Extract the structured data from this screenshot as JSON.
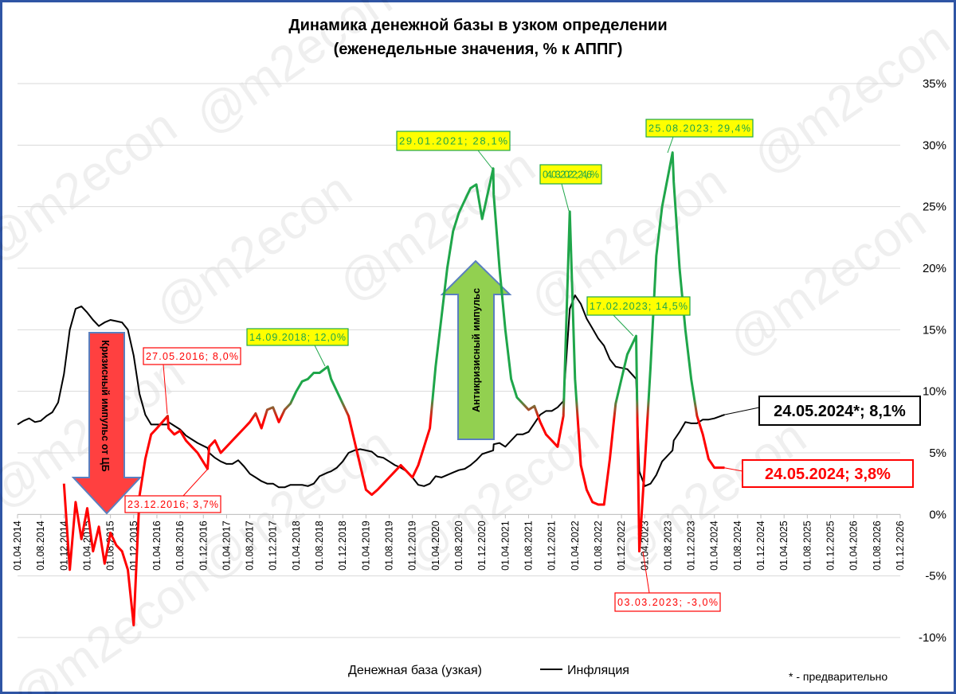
{
  "chart_data": {
    "type": "line",
    "title": "Динамика денежной базы в узком определении",
    "subtitle": "(еженедельные значения, % к АППГ)",
    "watermark": "@m2econ",
    "categories": [
      "01.04.2014",
      "01.08.2014",
      "01.12.2014",
      "01.04.2015",
      "01.08.2015",
      "01.12.2015",
      "01.04.2016",
      "01.08.2016",
      "01.12.2016",
      "01.04.2017",
      "01.08.2017",
      "01.12.2017",
      "01.04.2018",
      "01.08.2018",
      "01.12.2018",
      "01.04.2019",
      "01.08.2019",
      "01.12.2019",
      "01.04.2020",
      "01.08.2020",
      "01.12.2020",
      "01.04.2021",
      "01.08.2021",
      "01.12.2021",
      "01.04.2022",
      "01.08.2022",
      "01.12.2022",
      "01.04.2023",
      "01.08.2023",
      "01.12.2023",
      "01.04.2024",
      "01.08.2024",
      "01.12.2024",
      "01.04.2025",
      "01.08.2025",
      "01.12.2025",
      "01.04.2026",
      "01.08.2026",
      "01.12.2026"
    ],
    "x": [
      "01.04.2014",
      "01.05.2014",
      "01.06.2014",
      "01.07.2014",
      "01.08.2014",
      "01.09.2014",
      "01.10.2014",
      "01.11.2014",
      "01.12.2014",
      "01.01.2015",
      "01.02.2015",
      "01.03.2015",
      "01.04.2015",
      "01.05.2015",
      "01.06.2015",
      "01.07.2015",
      "01.08.2015",
      "01.09.2015",
      "01.10.2015",
      "01.11.2015",
      "01.12.2015",
      "01.01.2016",
      "01.02.2016",
      "01.03.2016",
      "01.04.2016",
      "27.05.2016",
      "01.06.2016",
      "01.07.2016",
      "01.08.2016",
      "01.09.2016",
      "01.10.2016",
      "01.11.2016",
      "23.12.2016",
      "01.01.2017",
      "01.02.2017",
      "01.03.2017",
      "01.04.2017",
      "01.05.2017",
      "01.06.2017",
      "01.07.2017",
      "01.08.2017",
      "01.09.2017",
      "01.10.2017",
      "01.11.2017",
      "01.12.2017",
      "01.01.2018",
      "01.02.2018",
      "01.03.2018",
      "01.04.2018",
      "01.05.2018",
      "01.06.2018",
      "01.07.2018",
      "01.08.2018",
      "14.09.2018",
      "01.10.2018",
      "01.11.2018",
      "01.12.2018",
      "01.01.2019",
      "01.02.2019",
      "01.03.2019",
      "01.04.2019",
      "01.05.2019",
      "01.06.2019",
      "01.07.2019",
      "01.08.2019",
      "01.09.2019",
      "01.10.2019",
      "01.11.2019",
      "01.12.2019",
      "01.01.2020",
      "01.02.2020",
      "01.03.2020",
      "01.04.2020",
      "01.05.2020",
      "01.06.2020",
      "01.07.2020",
      "01.08.2020",
      "01.09.2020",
      "01.10.2020",
      "01.11.2020",
      "01.12.2020",
      "29.01.2021",
      "01.02.2021",
      "01.03.2021",
      "01.04.2021",
      "01.05.2021",
      "01.06.2021",
      "01.07.2021",
      "01.08.2021",
      "01.09.2021",
      "01.10.2021",
      "01.11.2021",
      "01.12.2021",
      "01.01.2022",
      "01.02.2022",
      "04.03.2022",
      "01.04.2022",
      "01.05.2022",
      "01.06.2022",
      "01.07.2022",
      "01.08.2022",
      "01.09.2022",
      "01.10.2022",
      "01.11.2022",
      "01.12.2022",
      "01.01.2023",
      "17.02.2023",
      "03.03.2023",
      "01.04.2023",
      "01.05.2023",
      "01.06.2023",
      "01.07.2023",
      "25.08.2023",
      "01.09.2023",
      "01.10.2023",
      "01.11.2023",
      "01.12.2023",
      "01.01.2024",
      "01.02.2024",
      "01.03.2024",
      "01.04.2024",
      "24.05.2024"
    ],
    "series": [
      {
        "name": "Денежная база (узкая)",
        "color": "#ff0000",
        "color2": "#1fa64a",
        "values": [
          null,
          null,
          null,
          null,
          null,
          null,
          null,
          null,
          2.5,
          -4.5,
          1.0,
          -2.0,
          0.5,
          -3.0,
          -1.0,
          -4.0,
          -1.5,
          -2.5,
          -3.0,
          -4.5,
          -9.0,
          1.5,
          4.5,
          6.5,
          7.0,
          8.0,
          7.0,
          6.5,
          6.8,
          6.0,
          5.5,
          5.0,
          3.7,
          5.5,
          6.0,
          5.0,
          5.5,
          6.0,
          6.5,
          7.0,
          7.5,
          8.2,
          7.0,
          8.5,
          8.7,
          7.5,
          8.5,
          9.0,
          10.0,
          10.8,
          11.0,
          11.5,
          11.5,
          12.0,
          11.0,
          10.0,
          9.0,
          8.0,
          6.0,
          4.0,
          2.0,
          1.6,
          2.0,
          2.5,
          3.0,
          3.5,
          4.0,
          3.5,
          3.0,
          4.0,
          5.5,
          7.0,
          12.0,
          16.0,
          20.0,
          23.0,
          24.5,
          25.5,
          26.5,
          26.8,
          24.0,
          28.1,
          26.0,
          20.0,
          15.0,
          11.0,
          9.5,
          9.0,
          8.5,
          8.8,
          7.5,
          6.5,
          6.0,
          5.5,
          8.0,
          24.6,
          11.0,
          4.0,
          2.0,
          1.0,
          0.8,
          0.8,
          4.5,
          9.0,
          11.0,
          13.0,
          14.5,
          -3.0,
          4.0,
          12.0,
          21.0,
          25.0,
          29.4,
          27.0,
          20.0,
          15.0,
          11.0,
          8.0,
          6.5,
          4.5,
          3.8,
          3.8
        ]
      },
      {
        "name": "Инфляция",
        "color": "#000000",
        "values": [
          7.3,
          7.6,
          7.8,
          7.5,
          7.6,
          8.0,
          8.3,
          9.1,
          11.4,
          15.0,
          16.7,
          16.9,
          16.4,
          15.8,
          15.3,
          15.6,
          15.8,
          15.7,
          15.6,
          15.0,
          12.9,
          9.8,
          8.1,
          7.3,
          7.3,
          7.3,
          7.5,
          7.2,
          6.9,
          6.4,
          6.1,
          5.8,
          5.4,
          5.0,
          4.6,
          4.3,
          4.1,
          4.1,
          4.4,
          3.9,
          3.3,
          3.0,
          2.7,
          2.5,
          2.5,
          2.2,
          2.2,
          2.4,
          2.4,
          2.4,
          2.3,
          2.5,
          3.1,
          3.4,
          3.5,
          3.8,
          4.3,
          5.0,
          5.2,
          5.3,
          5.2,
          5.1,
          4.7,
          4.6,
          4.3,
          4.0,
          3.8,
          3.5,
          3.0,
          2.4,
          2.3,
          2.5,
          3.1,
          3.0,
          3.2,
          3.4,
          3.6,
          3.7,
          4.0,
          4.4,
          4.9,
          5.2,
          5.7,
          5.8,
          5.5,
          6.0,
          6.5,
          6.5,
          6.7,
          7.4,
          8.1,
          8.4,
          8.4,
          8.7,
          9.2,
          16.7,
          17.8,
          17.1,
          15.9,
          15.1,
          14.3,
          13.7,
          12.6,
          12.0,
          11.9,
          11.8,
          11.0,
          3.5,
          2.3,
          2.5,
          3.2,
          4.3,
          5.2,
          6.0,
          6.7,
          7.5,
          7.4,
          7.4,
          7.7,
          7.7,
          7.8,
          8.1
        ]
      }
    ],
    "ylim": [
      -10,
      35
    ],
    "yticks": [
      {
        "value": -10,
        "label": "-10%"
      },
      {
        "value": -5,
        "label": "-5%"
      },
      {
        "value": 0,
        "label": "0%"
      },
      {
        "value": 5,
        "label": "5%"
      },
      {
        "value": 10,
        "label": "10%"
      },
      {
        "value": 15,
        "label": "15%"
      },
      {
        "value": 20,
        "label": "20%"
      },
      {
        "value": 25,
        "label": "25%"
      },
      {
        "value": 30,
        "label": "30%"
      },
      {
        "value": 35,
        "label": "35%"
      }
    ],
    "grid": true,
    "annotations": [
      "27.05.2016; 8,0%",
      "23.12.2016; 3,7%",
      "14.09.2018; 12,0%",
      "29.01.2021; 28,1%",
      "04.03.2022; 24,6%",
      "17.02.2023; 14,5%",
      "25.08.2023; 29,4%",
      "03.03.2023; -3,0%",
      "24.05.2024*; 8,1%",
      "24.05.2024; 3,8%"
    ],
    "arrows": [
      "Кризисный импульс от ЦБ",
      "Антикризисный импульс"
    ],
    "footnote": "* - предварительно"
  }
}
